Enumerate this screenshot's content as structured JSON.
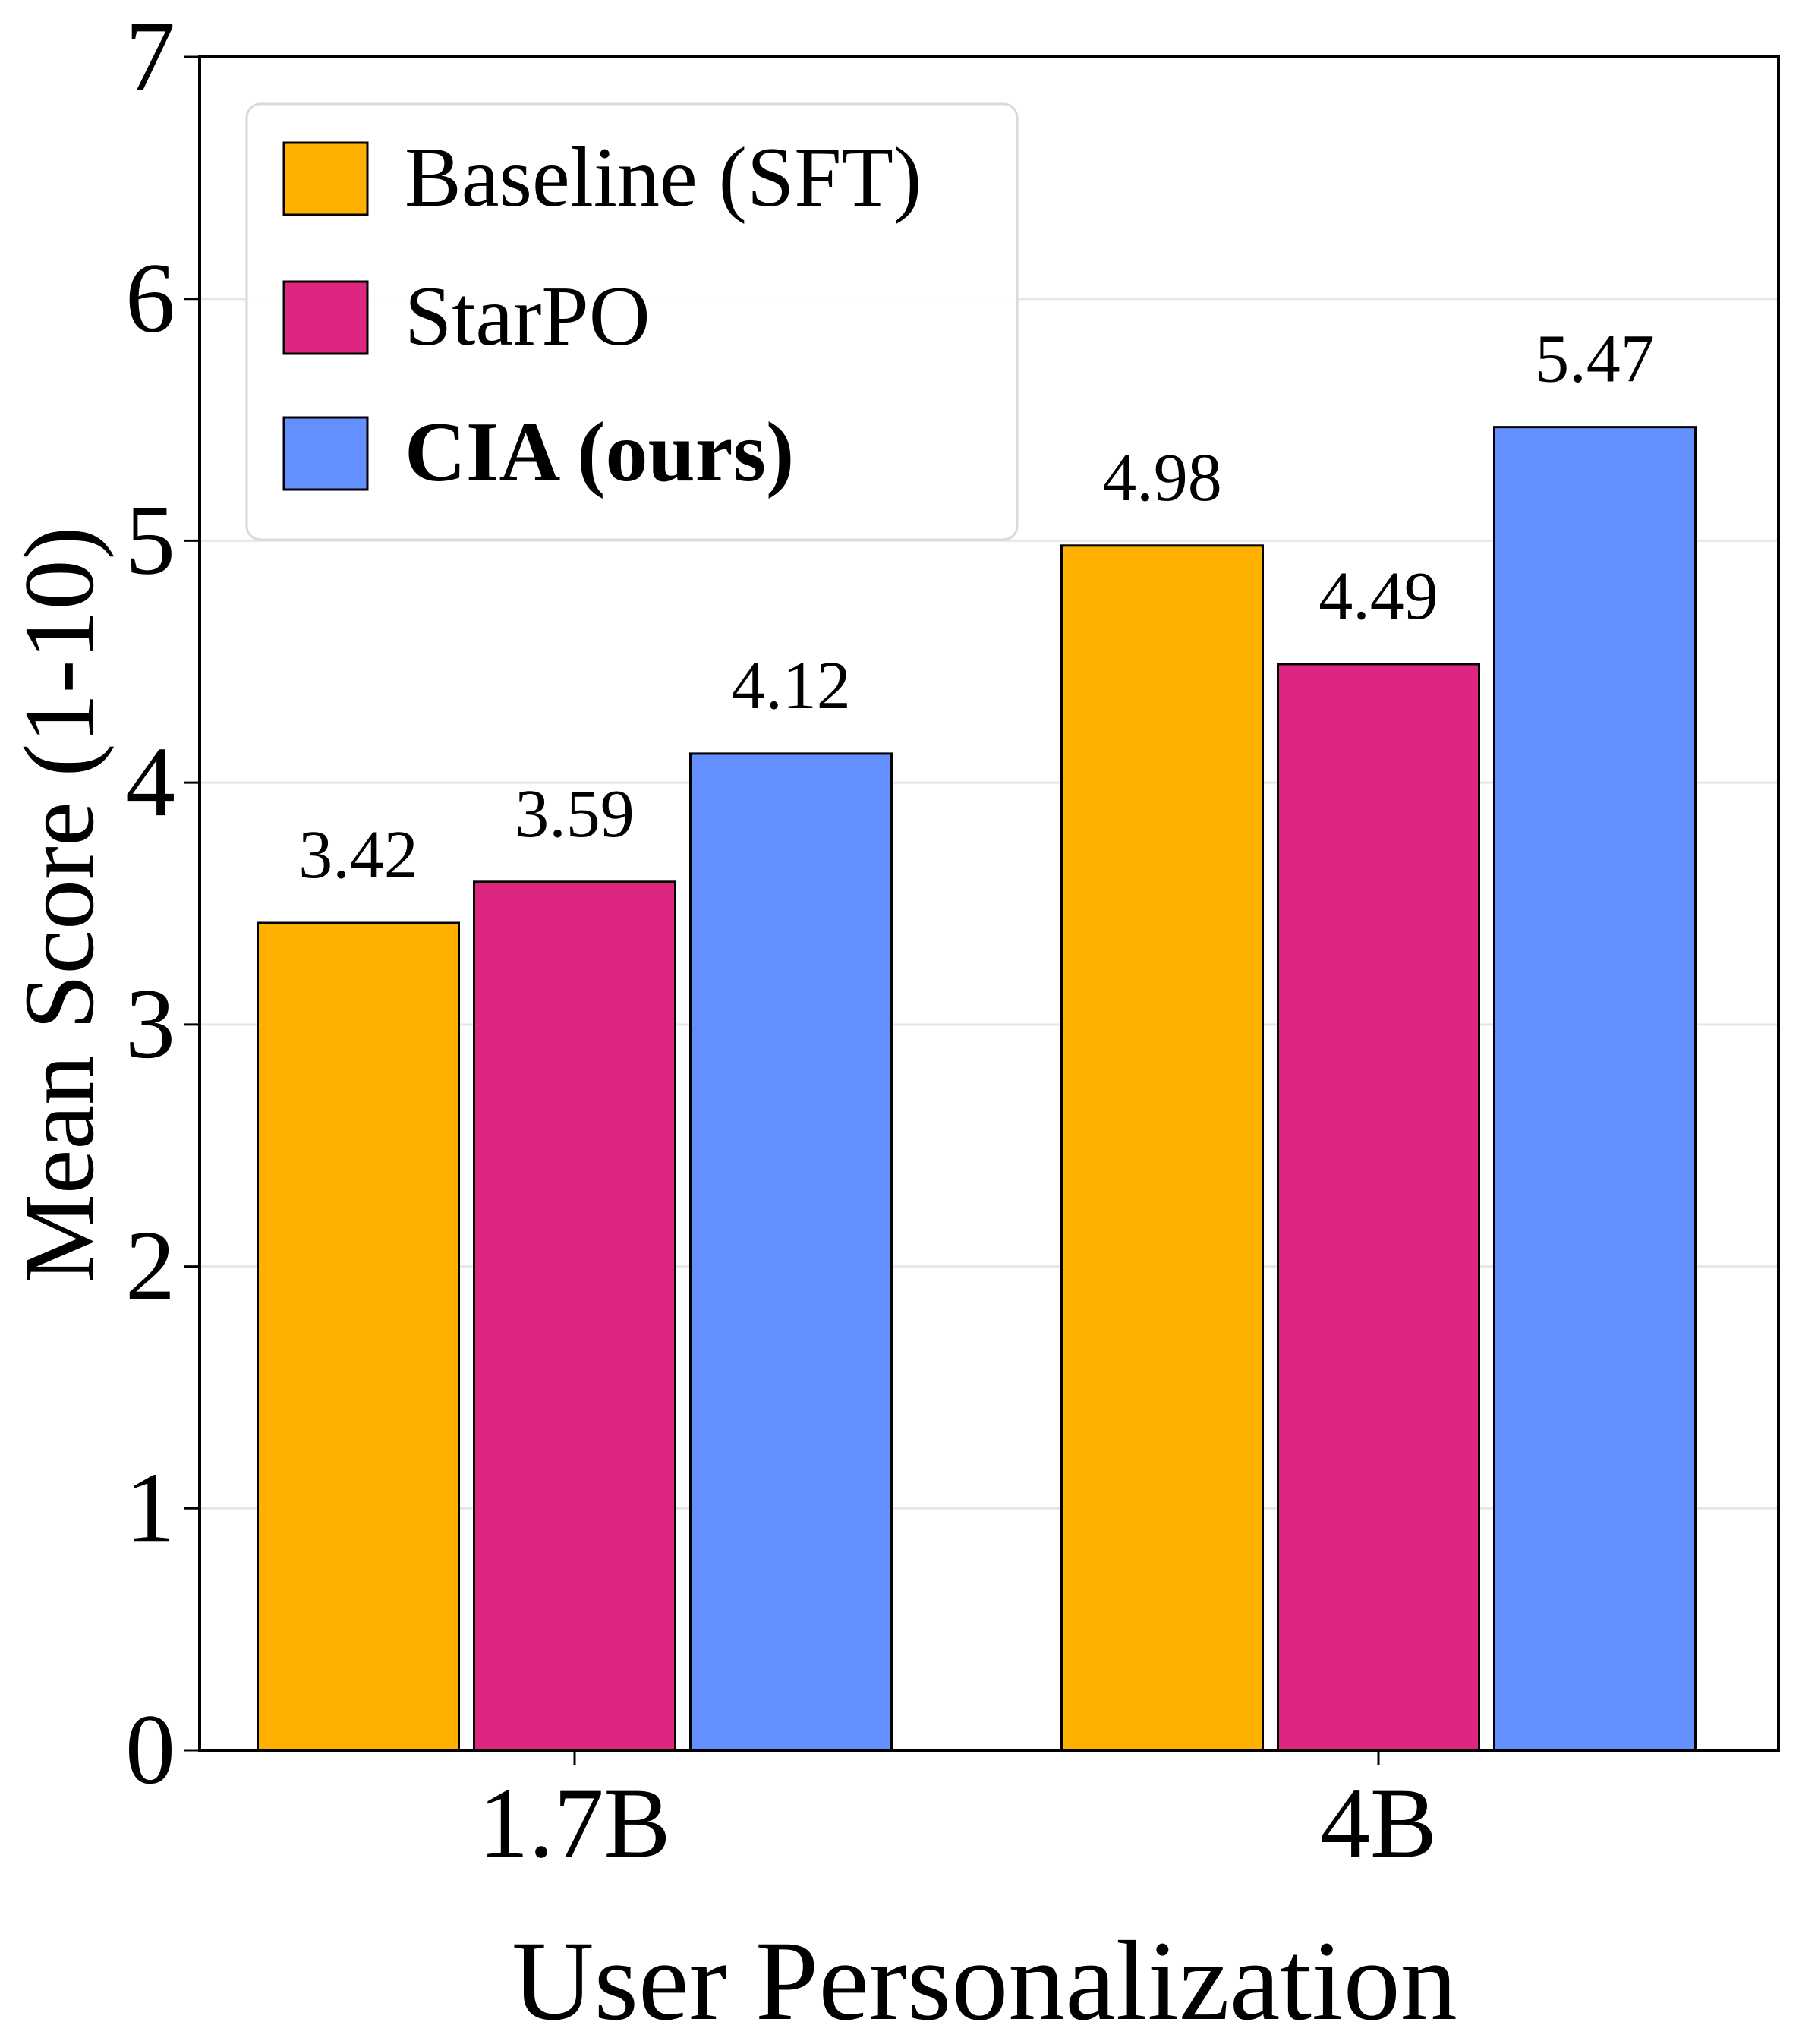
{
  "chart_data": {
    "type": "bar",
    "title": "",
    "xlabel": "User Personalization",
    "ylabel": "Mean Score (1-10)",
    "ylim": [
      0,
      7
    ],
    "yticks": [
      0,
      1,
      2,
      3,
      4,
      5,
      6,
      7
    ],
    "grid": "y",
    "legend_position": "top-left",
    "categories": [
      "1.7B",
      "4B"
    ],
    "series": [
      {
        "name": "Baseline (SFT)",
        "color": "#FFB000",
        "bold": false,
        "values": [
          3.42,
          4.98
        ],
        "labels": [
          "3.42",
          "4.98"
        ]
      },
      {
        "name": "StarPO",
        "color": "#DC267F",
        "bold": false,
        "values": [
          3.59,
          4.49
        ],
        "labels": [
          "3.59",
          "4.49"
        ]
      },
      {
        "name": "CIA (ours)",
        "color": "#648FFF",
        "bold": true,
        "values": [
          4.12,
          5.47
        ],
        "labels": [
          "4.12",
          "5.47"
        ]
      }
    ]
  }
}
